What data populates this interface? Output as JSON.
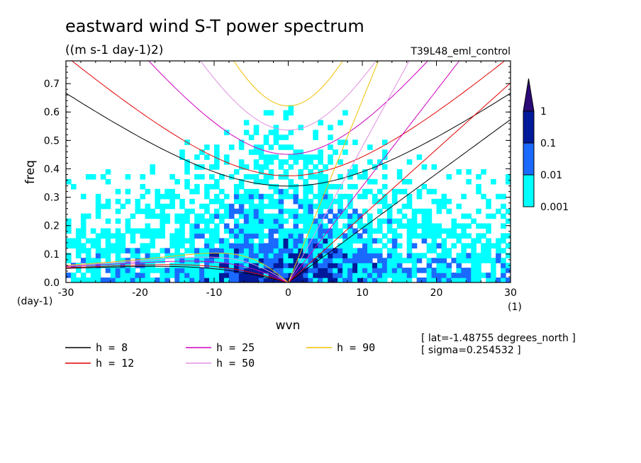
{
  "chart_data": {
    "type": "heatmap",
    "title": "eastward wind S-T power spectrum",
    "units": "((m s-1 day-1)2)",
    "run_name": "T39L48_eml_control",
    "xlabel": "wvn",
    "ylabel": "freq",
    "x_unit": "(1)",
    "y_unit": "(day-1)",
    "xlim": [
      -30,
      30
    ],
    "ylim": [
      0,
      0.78
    ],
    "x_ticks": [
      -30,
      -20,
      -10,
      0,
      10,
      20,
      30
    ],
    "y_ticks": [
      0.0,
      0.1,
      0.2,
      0.3,
      0.4,
      0.5,
      0.6,
      0.7
    ],
    "x_tick_labels": [
      "-30",
      "-20",
      "-10",
      "0",
      "10",
      "20",
      "30"
    ],
    "y_tick_labels": [
      "0.0",
      "0.1",
      "0.2",
      "0.3",
      "0.4",
      "0.5",
      "0.6",
      "0.7"
    ],
    "colorbar": {
      "levels": [
        "0.001",
        "0.01",
        "0.1",
        "1"
      ],
      "colors": [
        "#00ffff",
        "#1a6aff",
        "#001a9a",
        "#2c0a78"
      ]
    },
    "dispersion_curves": [
      {
        "name": "h =  8",
        "h": 8,
        "color": "#000000"
      },
      {
        "name": "h = 12",
        "h": 12,
        "color": "#e00000"
      },
      {
        "name": "h = 25",
        "h": 25,
        "color": "#d000c0"
      },
      {
        "name": "h = 50",
        "h": 50,
        "color": "#e090e0"
      },
      {
        "name": "h = 90",
        "h": 90,
        "color": "#f0c000"
      }
    ],
    "annotations": [
      "[ lat=-1.48755 degrees_north ]",
      "[ sigma=0.254532 ]"
    ]
  }
}
